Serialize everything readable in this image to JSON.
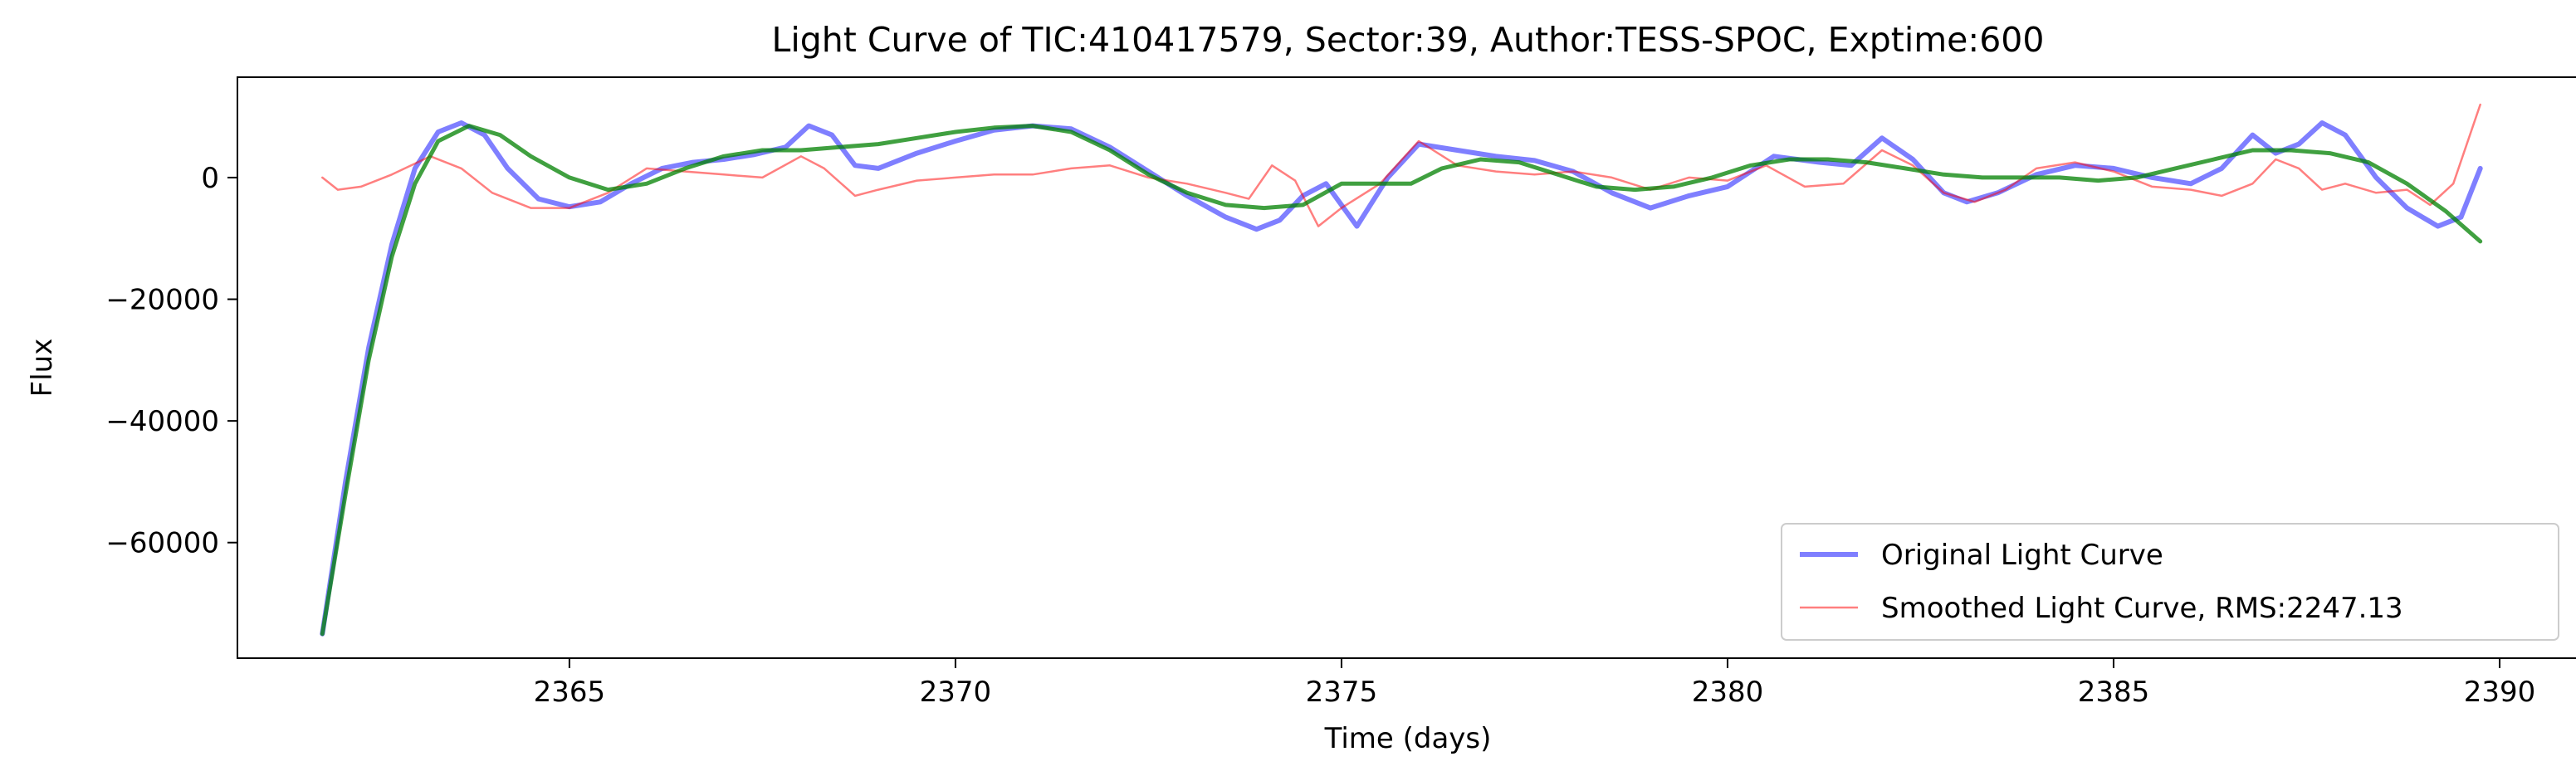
{
  "chart_data": {
    "type": "line",
    "title": "Light Curve of TIC:410417579, Sector:39, Author:TESS-SPOC, Exptime:600",
    "xlabel": "Time (days)",
    "ylabel": "Flux",
    "xlim": [
      2360.7,
      2391.0
    ],
    "ylim": [
      -79000,
      16500
    ],
    "x_ticks": [
      2365,
      2370,
      2375,
      2380,
      2385,
      2390
    ],
    "x_tick_labels": [
      "2365",
      "2370",
      "2375",
      "2380",
      "2385",
      "2390"
    ],
    "y_ticks": [
      0,
      -20000,
      -40000,
      -60000
    ],
    "y_tick_labels": [
      "0",
      "−20000",
      "−40000",
      "−60000"
    ],
    "grid": false,
    "legend_position": "lower-right",
    "series": [
      {
        "name": "Original Light Curve",
        "color": "#0000ff",
        "opacity": 0.5,
        "line_width": "thick",
        "x": [
          2361.8,
          2362.1,
          2362.4,
          2362.7,
          2363.0,
          2363.3,
          2363.6,
          2363.9,
          2364.2,
          2364.6,
          2365.0,
          2365.4,
          2365.8,
          2366.2,
          2366.6,
          2367.0,
          2367.4,
          2367.8,
          2368.1,
          2368.4,
          2368.7,
          2369.0,
          2369.5,
          2370.0,
          2370.5,
          2371.0,
          2371.5,
          2372.0,
          2372.5,
          2373.0,
          2373.5,
          2373.9,
          2374.2,
          2374.5,
          2374.8,
          2375.2,
          2375.6,
          2376.0,
          2376.5,
          2377.0,
          2377.5,
          2378.0,
          2378.5,
          2379.0,
          2379.5,
          2380.0,
          2380.3,
          2380.6,
          2380.9,
          2381.2,
          2381.6,
          2382.0,
          2382.4,
          2382.8,
          2383.1,
          2383.5,
          2384.0,
          2384.5,
          2385.0,
          2385.5,
          2386.0,
          2386.4,
          2386.8,
          2387.1,
          2387.4,
          2387.7,
          2388.0,
          2388.4,
          2388.8,
          2389.2,
          2389.5,
          2389.75
        ],
        "y": [
          -75000,
          -50000,
          -28000,
          -11000,
          1500,
          7500,
          9000,
          7000,
          1500,
          -3500,
          -4800,
          -4000,
          -1000,
          1500,
          2500,
          3000,
          3800,
          5000,
          8500,
          7000,
          2000,
          1500,
          4000,
          6000,
          7800,
          8500,
          8000,
          5000,
          1000,
          -3000,
          -6500,
          -8500,
          -7000,
          -3000,
          -1000,
          -8000,
          0,
          5500,
          4500,
          3500,
          2800,
          1000,
          -2500,
          -5000,
          -3000,
          -1500,
          1000,
          3500,
          3000,
          2500,
          2000,
          6500,
          3000,
          -2500,
          -4000,
          -2500,
          500,
          2000,
          1500,
          0,
          -1000,
          1500,
          7000,
          4000,
          5500,
          9000,
          7000,
          0,
          -5000,
          -8000,
          -6500,
          1500
        ]
      },
      {
        "name": "Smoothed Light Curve, RMS:2247.13",
        "color": "#ff0000",
        "opacity": 0.5,
        "line_width": "thin",
        "x": [
          2361.8,
          2362.0,
          2362.3,
          2362.7,
          2363.2,
          2363.6,
          2364.0,
          2364.5,
          2365.0,
          2365.5,
          2366.0,
          2366.5,
          2367.0,
          2367.5,
          2368.0,
          2368.3,
          2368.7,
          2369.0,
          2369.5,
          2370.0,
          2370.5,
          2371.0,
          2371.5,
          2372.0,
          2372.5,
          2373.0,
          2373.5,
          2373.8,
          2374.1,
          2374.4,
          2374.7,
          2375.0,
          2375.5,
          2376.0,
          2376.5,
          2377.0,
          2377.5,
          2378.0,
          2378.5,
          2379.0,
          2379.5,
          2380.0,
          2380.5,
          2381.0,
          2381.5,
          2382.0,
          2382.4,
          2382.8,
          2383.2,
          2383.6,
          2384.0,
          2384.5,
          2385.0,
          2385.5,
          2386.0,
          2386.4,
          2386.8,
          2387.1,
          2387.4,
          2387.7,
          2388.0,
          2388.4,
          2388.8,
          2389.1,
          2389.4,
          2389.75
        ],
        "y": [
          0,
          -2000,
          -1500,
          500,
          3500,
          1500,
          -2500,
          -5000,
          -5000,
          -2500,
          1500,
          1000,
          500,
          0,
          3500,
          1500,
          -3000,
          -2000,
          -500,
          0,
          500,
          500,
          1500,
          2000,
          0,
          -1000,
          -2500,
          -3500,
          2000,
          -500,
          -8000,
          -5000,
          -1000,
          6000,
          2000,
          1000,
          500,
          1000,
          0,
          -2000,
          0,
          -500,
          2000,
          -1500,
          -1000,
          4500,
          2000,
          -2500,
          -4000,
          -2000,
          1500,
          2500,
          1000,
          -1500,
          -2000,
          -3000,
          -1000,
          3000,
          1500,
          -2000,
          -1000,
          -2500,
          -2000,
          -4500,
          -1000,
          12000
        ]
      },
      {
        "name": "",
        "color": "#008000",
        "opacity": 0.75,
        "line_width": "medium",
        "x": [
          2361.8,
          2362.1,
          2362.4,
          2362.7,
          2363.0,
          2363.3,
          2363.7,
          2364.1,
          2364.5,
          2365.0,
          2365.5,
          2366.0,
          2366.5,
          2367.0,
          2367.5,
          2368.0,
          2368.5,
          2369.0,
          2369.5,
          2370.0,
          2370.5,
          2371.0,
          2371.5,
          2372.0,
          2372.5,
          2373.0,
          2373.5,
          2374.0,
          2374.5,
          2375.0,
          2375.5,
          2375.9,
          2376.3,
          2376.8,
          2377.3,
          2377.8,
          2378.3,
          2378.8,
          2379.3,
          2379.8,
          2380.3,
          2380.8,
          2381.3,
          2381.8,
          2382.3,
          2382.8,
          2383.3,
          2383.8,
          2384.3,
          2384.8,
          2385.3,
          2385.8,
          2386.3,
          2386.8,
          2387.3,
          2387.8,
          2388.3,
          2388.8,
          2389.3,
          2389.75
        ],
        "y": [
          -75000,
          -52000,
          -30000,
          -13000,
          -1000,
          6000,
          8500,
          7000,
          3500,
          0,
          -2000,
          -1000,
          1500,
          3500,
          4500,
          4500,
          5000,
          5500,
          6500,
          7500,
          8200,
          8500,
          7500,
          4500,
          500,
          -2500,
          -4500,
          -5000,
          -4500,
          -1000,
          -1000,
          -1000,
          1500,
          3000,
          2500,
          500,
          -1500,
          -2000,
          -1500,
          0,
          2000,
          3000,
          3000,
          2500,
          1500,
          500,
          0,
          0,
          0,
          -500,
          0,
          1500,
          3000,
          4500,
          4500,
          4000,
          2500,
          -1000,
          -5500,
          -10500
        ]
      }
    ]
  }
}
